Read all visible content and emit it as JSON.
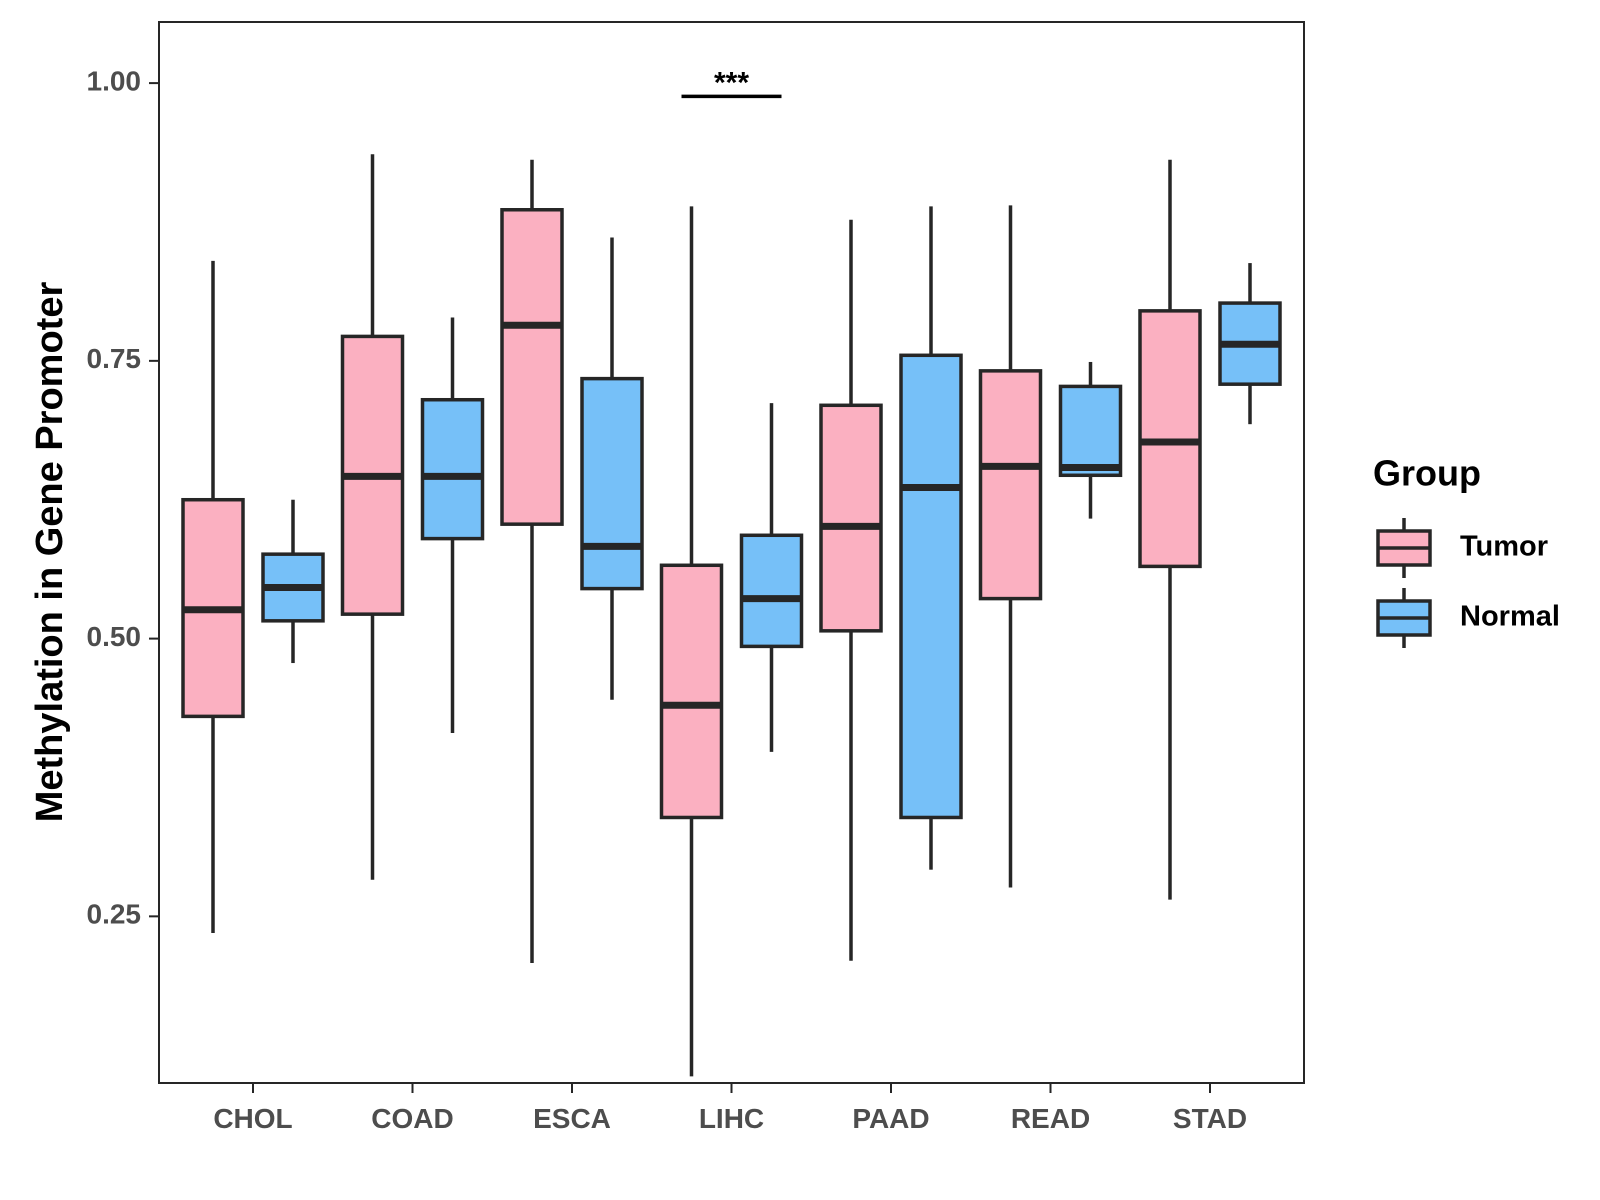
{
  "chart_data": {
    "type": "boxplot",
    "title": "",
    "xlabel": "",
    "ylabel": "Methylation in Gene Promoter",
    "ylim": [
      0.1,
      1.055
    ],
    "yticks": [
      0.25,
      0.5,
      0.75,
      1.0
    ],
    "ytick_labels": [
      "0.25",
      "0.50",
      "0.75",
      "1.00"
    ],
    "grid": false,
    "categories": [
      "CHOL",
      "COAD",
      "ESCA",
      "LIHC",
      "PAAD",
      "READ",
      "STAD"
    ],
    "legend": {
      "title": "Group",
      "position": "right",
      "entries": [
        "Tumor",
        "Normal"
      ]
    },
    "colors": {
      "Tumor": "#fbb0c1",
      "Normal": "#76c0f8",
      "outline": "#262626"
    },
    "series": [
      {
        "name": "Tumor",
        "boxes": [
          {
            "min": 0.235,
            "q1": 0.43,
            "median": 0.526,
            "q3": 0.625,
            "max": 0.84
          },
          {
            "min": 0.283,
            "q1": 0.522,
            "median": 0.646,
            "q3": 0.772,
            "max": 0.936
          },
          {
            "min": 0.208,
            "q1": 0.603,
            "median": 0.782,
            "q3": 0.886,
            "max": 0.931
          },
          {
            "min": 0.106,
            "q1": 0.339,
            "median": 0.44,
            "q3": 0.566,
            "max": 0.889
          },
          {
            "min": 0.21,
            "q1": 0.507,
            "median": 0.601,
            "q3": 0.71,
            "max": 0.877
          },
          {
            "min": 0.276,
            "q1": 0.536,
            "median": 0.655,
            "q3": 0.741,
            "max": 0.89
          },
          {
            "min": 0.265,
            "q1": 0.565,
            "median": 0.677,
            "q3": 0.795,
            "max": 0.931
          }
        ]
      },
      {
        "name": "Normal",
        "boxes": [
          {
            "min": 0.478,
            "q1": 0.516,
            "median": 0.546,
            "q3": 0.576,
            "max": 0.625
          },
          {
            "min": 0.415,
            "q1": 0.59,
            "median": 0.646,
            "q3": 0.715,
            "max": 0.789
          },
          {
            "min": 0.445,
            "q1": 0.545,
            "median": 0.583,
            "q3": 0.734,
            "max": 0.861
          },
          {
            "min": 0.398,
            "q1": 0.493,
            "median": 0.536,
            "q3": 0.593,
            "max": 0.712
          },
          {
            "min": 0.292,
            "q1": 0.339,
            "median": 0.636,
            "q3": 0.755,
            "max": 0.889
          },
          {
            "min": 0.608,
            "q1": 0.647,
            "median": 0.654,
            "q3": 0.727,
            "max": 0.749
          },
          {
            "min": 0.693,
            "q1": 0.729,
            "median": 0.765,
            "q3": 0.802,
            "max": 0.838
          }
        ]
      }
    ],
    "annotations": [
      {
        "text": "***",
        "category": "LIHC",
        "y": 0.988
      }
    ]
  }
}
